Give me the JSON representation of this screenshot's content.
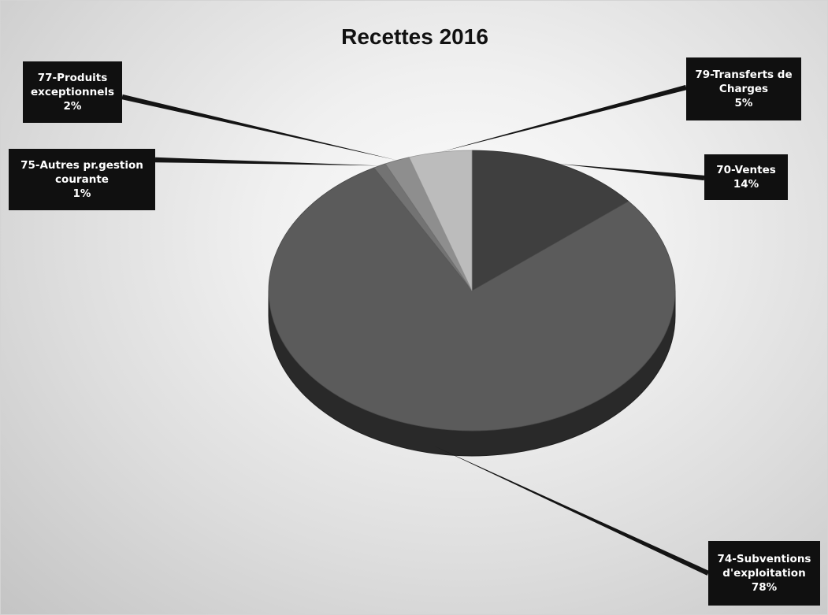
{
  "chart_data": {
    "type": "pie",
    "title": "Recettes 2016",
    "slices": [
      {
        "lines": [
          "70-Ventes"
        ],
        "value": 14,
        "percent_label": "14%",
        "color": "#3f3f3f"
      },
      {
        "lines": [
          "74-Subventions",
          "d'exploitation"
        ],
        "value": 78,
        "percent_label": "78%",
        "color": "#5b5b5b"
      },
      {
        "lines": [
          "75-Autres pr.gestion",
          "courante"
        ],
        "value": 1,
        "percent_label": "1%",
        "color": "#737373"
      },
      {
        "lines": [
          "77-Produits",
          "exceptionnels"
        ],
        "value": 2,
        "percent_label": "2%",
        "color": "#8e8e8e"
      },
      {
        "lines": [
          "79-Transferts de",
          "Charges"
        ],
        "value": 5,
        "percent_label": "5%",
        "color": "#bcbcbc"
      }
    ],
    "legend": "data labels with leader lines",
    "style": "3d pie, grayscale"
  }
}
